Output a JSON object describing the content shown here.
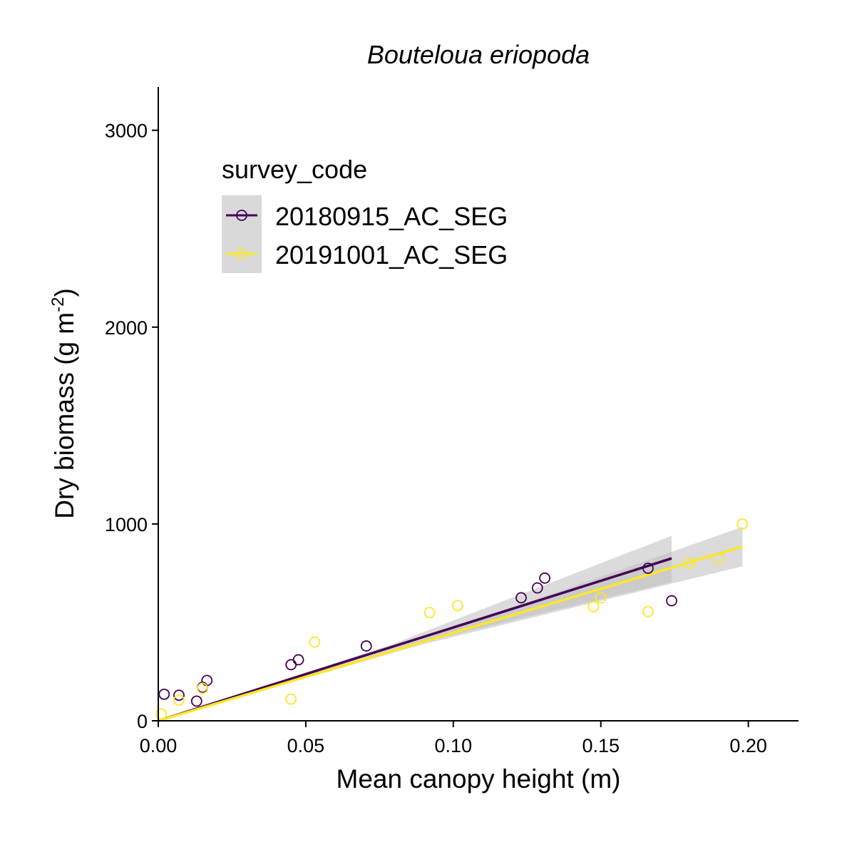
{
  "chart_data": {
    "type": "scatter",
    "title": "Bouteloua eriopoda",
    "xlabel": "Mean canopy height (m)",
    "ylabel_main": "Dry biomass (g m",
    "ylabel_sup": "-2",
    "ylabel_close": ")",
    "xlim": [
      0,
      0.217
    ],
    "ylim": [
      0,
      3220
    ],
    "x_ticks": [
      0,
      0.05,
      0.1,
      0.15,
      0.2
    ],
    "x_tick_labels": [
      "0.00",
      "0.05",
      "0.10",
      "0.15",
      "0.20"
    ],
    "y_ticks": [
      0,
      1000,
      2000,
      3000
    ],
    "y_tick_labels": [
      "0",
      "1000",
      "2000",
      "3000"
    ],
    "grid": false,
    "legend": {
      "title": "survey_code",
      "position": "top-left"
    },
    "series": [
      {
        "name": "20180915_AC_SEG",
        "color": "#440154",
        "points": [
          [
            0.002,
            135
          ],
          [
            0.007,
            130
          ],
          [
            0.013,
            100
          ],
          [
            0.015,
            170
          ],
          [
            0.0165,
            205
          ],
          [
            0.045,
            285
          ],
          [
            0.0475,
            310
          ],
          [
            0.0705,
            380
          ],
          [
            0.123,
            625
          ],
          [
            0.1285,
            675
          ],
          [
            0.131,
            725
          ],
          [
            0.166,
            775
          ],
          [
            0.174,
            610
          ]
        ],
        "fit": {
          "x0": 0,
          "y0": 0,
          "x1": 0.174,
          "y1": 825
        },
        "ci": {
          "lower_end": 705,
          "upper_end": 940
        }
      },
      {
        "name": "20191001_AC_SEG",
        "color": "#FDE725",
        "points": [
          [
            0.001,
            35
          ],
          [
            0.007,
            105
          ],
          [
            0.015,
            165
          ],
          [
            0.045,
            110
          ],
          [
            0.053,
            400
          ],
          [
            0.092,
            550
          ],
          [
            0.1015,
            585
          ],
          [
            0.1475,
            580
          ],
          [
            0.15,
            625
          ],
          [
            0.166,
            555
          ],
          [
            0.18,
            800
          ],
          [
            0.19,
            825
          ],
          [
            0.198,
            1000
          ]
        ],
        "fit": {
          "x0": 0,
          "y0": 0,
          "x1": 0.198,
          "y1": 885
        },
        "ci": {
          "lower_end": 785,
          "upper_end": 985
        }
      }
    ]
  }
}
